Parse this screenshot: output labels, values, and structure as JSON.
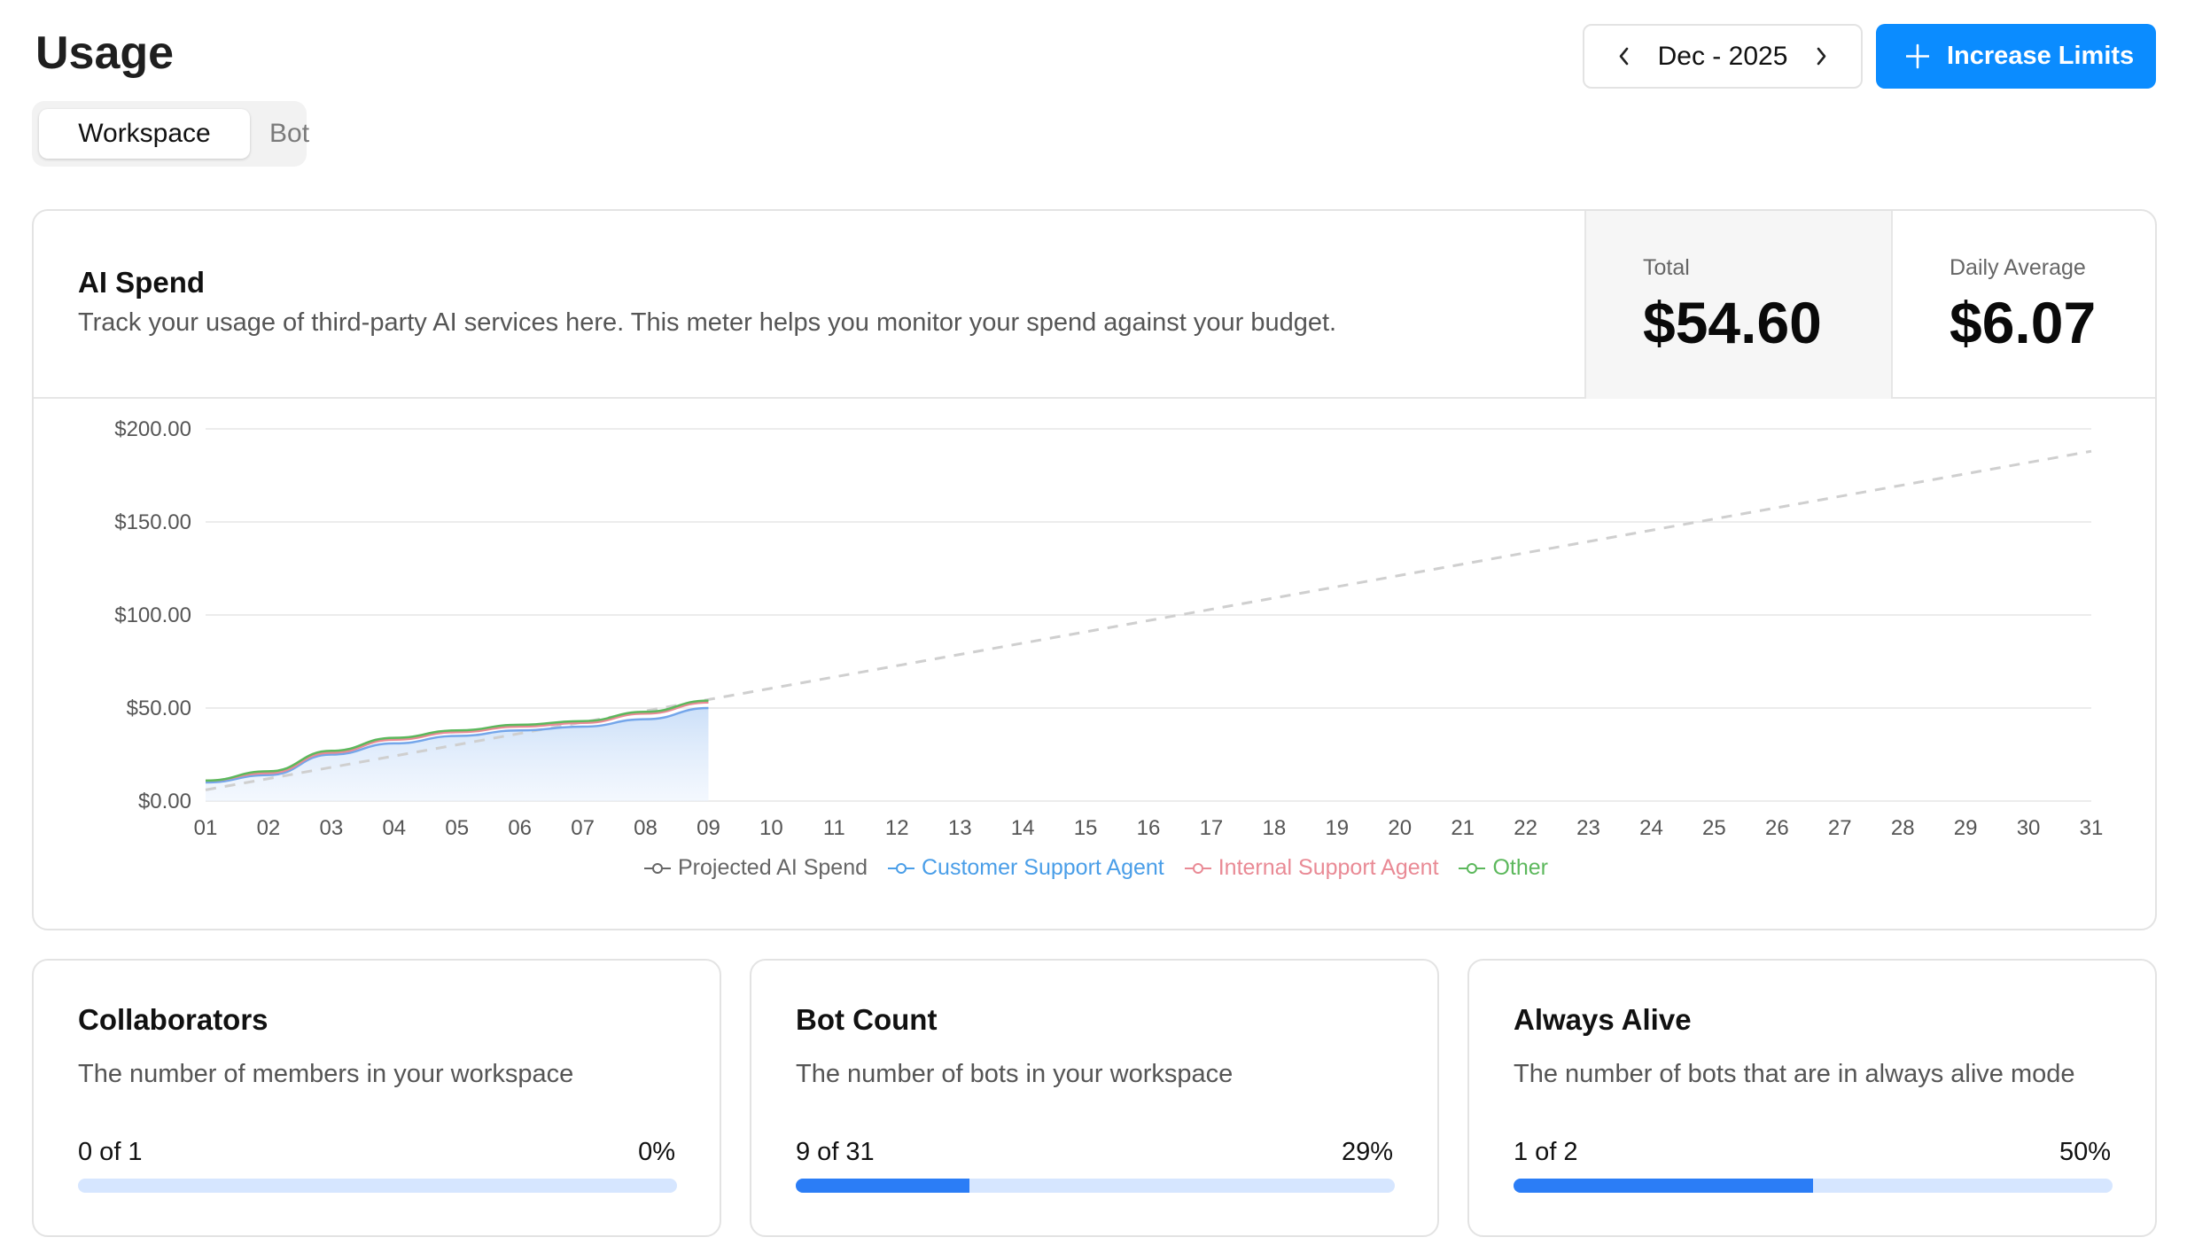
{
  "header": {
    "title": "Usage",
    "tabs": [
      {
        "label": "Workspace",
        "active": true
      },
      {
        "label": "Bot",
        "active": false
      }
    ],
    "month_picker": {
      "label": "Dec - 2025",
      "prev_icon": "chevron-left-icon",
      "next_icon": "chevron-right-icon"
    },
    "increase_button": {
      "label": "Increase Limits",
      "icon": "plus-icon",
      "color": "#0b8cff"
    }
  },
  "ai_spend": {
    "title": "AI Spend",
    "description": "Track your usage of third-party AI services here. This meter helps you monitor your spend against your budget.",
    "total_label": "Total",
    "total_value": "$54.60",
    "avg_label": "Daily Average",
    "avg_value": "$6.07"
  },
  "chart_data": {
    "type": "line",
    "x": [
      "01",
      "02",
      "03",
      "04",
      "05",
      "06",
      "07",
      "08",
      "09",
      "10",
      "11",
      "12",
      "13",
      "14",
      "15",
      "16",
      "17",
      "18",
      "19",
      "20",
      "21",
      "22",
      "23",
      "24",
      "25",
      "26",
      "27",
      "28",
      "29",
      "30",
      "31"
    ],
    "ylim": [
      0,
      200
    ],
    "y_ticks": [
      "$0.00",
      "$50.00",
      "$100.00",
      "$150.00",
      "$200.00"
    ],
    "y_tick_values": [
      0,
      50,
      100,
      150,
      200
    ],
    "grid": true,
    "legend_position": "bottom",
    "series": [
      {
        "name": "Projected AI Spend",
        "style": "dashed",
        "color": "#cfcfcf",
        "x": [
          "01",
          "31"
        ],
        "values": [
          6,
          188
        ]
      },
      {
        "name": "Customer Support Agent",
        "color": "#74a6ea",
        "fill": "#dbeafb",
        "x": [
          "01",
          "02",
          "03",
          "04",
          "05",
          "06",
          "07",
          "08",
          "09"
        ],
        "values": [
          10,
          14,
          25,
          31,
          35,
          38,
          40,
          44,
          50
        ]
      },
      {
        "name": "Internal Support Agent",
        "color": "#e98a95",
        "x": [
          "01",
          "02",
          "03",
          "04",
          "05",
          "06",
          "07",
          "08",
          "09"
        ],
        "values": [
          11,
          15,
          26,
          33,
          37,
          40,
          42,
          47,
          53
        ]
      },
      {
        "name": "Other",
        "color": "#5cb85c",
        "x": [
          "01",
          "02",
          "03",
          "04",
          "05",
          "06",
          "07",
          "08",
          "09"
        ],
        "values": [
          11,
          16,
          27,
          34,
          38,
          41,
          43,
          48,
          54
        ]
      }
    ]
  },
  "limits": [
    {
      "title": "Collaborators",
      "description": "The number of members in your workspace",
      "count": "0 of 1",
      "percent": "0%",
      "fraction": 0
    },
    {
      "title": "Bot Count",
      "description": "The number of bots in your workspace",
      "count": "9 of 31",
      "percent": "29%",
      "fraction": 0.29
    },
    {
      "title": "Always Alive",
      "description": "The number of bots that are in always alive mode",
      "count": "1 of 2",
      "percent": "50%",
      "fraction": 0.5
    }
  ]
}
